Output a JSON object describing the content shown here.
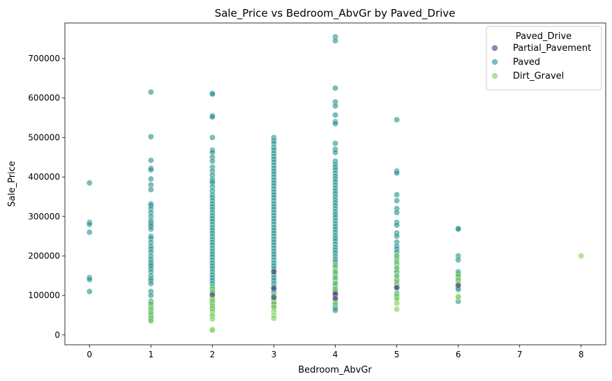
{
  "chart_data": {
    "type": "scatter",
    "title": "Sale_Price vs Bedroom_AbvGr by Paved_Drive",
    "xlabel": "Bedroom_AbvGr",
    "ylabel": "Sale_Price",
    "xlim": [
      -0.4,
      8.4
    ],
    "ylim": [
      -25000,
      790000
    ],
    "xticks": [
      "0",
      "1",
      "2",
      "3",
      "4",
      "5",
      "6",
      "7",
      "8"
    ],
    "yticks": [
      "0",
      "100000",
      "200000",
      "300000",
      "400000",
      "500000",
      "600000",
      "700000"
    ],
    "grid": false,
    "legend": {
      "title": "Paved_Drive",
      "position": "top-right"
    },
    "series": [
      {
        "name": "Partial_Pavement",
        "color": "#46337e",
        "points": [
          [
            3,
            160000
          ],
          [
            3,
            118000
          ],
          [
            3,
            95000
          ],
          [
            4,
            100000
          ],
          [
            4,
            105000
          ],
          [
            4,
            92000
          ],
          [
            2,
            102000
          ],
          [
            5,
            120000
          ],
          [
            6,
            125000
          ]
        ]
      },
      {
        "name": "Paved",
        "color": "#21918c",
        "points": [
          [
            0,
            385000
          ],
          [
            0,
            285000
          ],
          [
            0,
            280000
          ],
          [
            0,
            260000
          ],
          [
            0,
            145000
          ],
          [
            0,
            140000
          ],
          [
            0,
            110000
          ],
          [
            1,
            615000
          ],
          [
            1,
            502000
          ],
          [
            1,
            442000
          ],
          [
            1,
            422000
          ],
          [
            1,
            418000
          ],
          [
            1,
            395000
          ],
          [
            1,
            380000
          ],
          [
            1,
            368000
          ],
          [
            1,
            332000
          ],
          [
            1,
            328000
          ],
          [
            1,
            320000
          ],
          [
            1,
            310000
          ],
          [
            1,
            300000
          ],
          [
            1,
            290000
          ],
          [
            1,
            285000
          ],
          [
            1,
            280000
          ],
          [
            1,
            275000
          ],
          [
            1,
            268000
          ],
          [
            1,
            250000
          ],
          [
            1,
            245000
          ],
          [
            1,
            235000
          ],
          [
            1,
            225000
          ],
          [
            1,
            218000
          ],
          [
            1,
            210000
          ],
          [
            1,
            200000
          ],
          [
            1,
            192000
          ],
          [
            1,
            185000
          ],
          [
            1,
            180000
          ],
          [
            1,
            175000
          ],
          [
            1,
            168000
          ],
          [
            1,
            160000
          ],
          [
            1,
            150000
          ],
          [
            1,
            143000
          ],
          [
            1,
            138000
          ],
          [
            1,
            130000
          ],
          [
            1,
            110000
          ],
          [
            1,
            100000
          ],
          [
            1,
            85000
          ],
          [
            1,
            78000
          ],
          [
            1,
            70000
          ],
          [
            1,
            60000
          ],
          [
            1,
            50000
          ],
          [
            1,
            45000
          ],
          [
            1,
            38000
          ],
          [
            2,
            612000
          ],
          [
            2,
            610000
          ],
          [
            2,
            555000
          ],
          [
            2,
            552000
          ],
          [
            2,
            500000
          ],
          [
            2,
            468000
          ],
          [
            2,
            462000
          ],
          [
            2,
            450000
          ],
          [
            2,
            440000
          ],
          [
            2,
            425000
          ],
          [
            2,
            415000
          ],
          [
            2,
            405000
          ],
          [
            2,
            395000
          ],
          [
            2,
            390000
          ],
          [
            2,
            385000
          ],
          [
            2,
            375000
          ],
          [
            2,
            365000
          ],
          [
            2,
            355000
          ],
          [
            2,
            348000
          ],
          [
            2,
            340000
          ],
          [
            2,
            332000
          ],
          [
            2,
            325000
          ],
          [
            2,
            318000
          ],
          [
            2,
            310000
          ],
          [
            2,
            302000
          ],
          [
            2,
            295000
          ],
          [
            2,
            288000
          ],
          [
            2,
            280000
          ],
          [
            2,
            272000
          ],
          [
            2,
            265000
          ],
          [
            2,
            258000
          ],
          [
            2,
            250000
          ],
          [
            2,
            242000
          ],
          [
            2,
            235000
          ],
          [
            2,
            228000
          ],
          [
            2,
            220000
          ],
          [
            2,
            212000
          ],
          [
            2,
            205000
          ],
          [
            2,
            198000
          ],
          [
            2,
            190000
          ],
          [
            2,
            182000
          ],
          [
            2,
            175000
          ],
          [
            2,
            168000
          ],
          [
            2,
            160000
          ],
          [
            2,
            152000
          ],
          [
            2,
            145000
          ],
          [
            2,
            138000
          ],
          [
            2,
            130000
          ],
          [
            2,
            122000
          ],
          [
            2,
            115000
          ],
          [
            2,
            108000
          ],
          [
            2,
            95000
          ],
          [
            2,
            88000
          ],
          [
            2,
            80000
          ],
          [
            2,
            72000
          ],
          [
            2,
            65000
          ],
          [
            3,
            500000
          ],
          [
            3,
            492000
          ],
          [
            3,
            485000
          ],
          [
            3,
            475000
          ],
          [
            3,
            468000
          ],
          [
            3,
            460000
          ],
          [
            3,
            452000
          ],
          [
            3,
            445000
          ],
          [
            3,
            438000
          ],
          [
            3,
            430000
          ],
          [
            3,
            422000
          ],
          [
            3,
            415000
          ],
          [
            3,
            408000
          ],
          [
            3,
            400000
          ],
          [
            3,
            392000
          ],
          [
            3,
            385000
          ],
          [
            3,
            378000
          ],
          [
            3,
            370000
          ],
          [
            3,
            362000
          ],
          [
            3,
            355000
          ],
          [
            3,
            348000
          ],
          [
            3,
            340000
          ],
          [
            3,
            332000
          ],
          [
            3,
            325000
          ],
          [
            3,
            318000
          ],
          [
            3,
            310000
          ],
          [
            3,
            302000
          ],
          [
            3,
            295000
          ],
          [
            3,
            288000
          ],
          [
            3,
            280000
          ],
          [
            3,
            272000
          ],
          [
            3,
            265000
          ],
          [
            3,
            258000
          ],
          [
            3,
            250000
          ],
          [
            3,
            242000
          ],
          [
            3,
            235000
          ],
          [
            3,
            228000
          ],
          [
            3,
            220000
          ],
          [
            3,
            212000
          ],
          [
            3,
            205000
          ],
          [
            3,
            198000
          ],
          [
            3,
            190000
          ],
          [
            3,
            182000
          ],
          [
            3,
            175000
          ],
          [
            3,
            168000
          ],
          [
            3,
            160000
          ],
          [
            3,
            152000
          ],
          [
            3,
            145000
          ],
          [
            3,
            138000
          ],
          [
            3,
            130000
          ],
          [
            3,
            122000
          ],
          [
            3,
            115000
          ],
          [
            3,
            108000
          ],
          [
            3,
            100000
          ],
          [
            3,
            92000
          ],
          [
            3,
            85000
          ],
          [
            3,
            78000
          ],
          [
            3,
            70000
          ],
          [
            4,
            755000
          ],
          [
            4,
            745000
          ],
          [
            4,
            625000
          ],
          [
            4,
            590000
          ],
          [
            4,
            580000
          ],
          [
            4,
            557000
          ],
          [
            4,
            540000
          ],
          [
            4,
            535000
          ],
          [
            4,
            485000
          ],
          [
            4,
            470000
          ],
          [
            4,
            462000
          ],
          [
            4,
            440000
          ],
          [
            4,
            432000
          ],
          [
            4,
            425000
          ],
          [
            4,
            418000
          ],
          [
            4,
            410000
          ],
          [
            4,
            402000
          ],
          [
            4,
            395000
          ],
          [
            4,
            388000
          ],
          [
            4,
            380000
          ],
          [
            4,
            372000
          ],
          [
            4,
            365000
          ],
          [
            4,
            358000
          ],
          [
            4,
            350000
          ],
          [
            4,
            342000
          ],
          [
            4,
            335000
          ],
          [
            4,
            328000
          ],
          [
            4,
            320000
          ],
          [
            4,
            312000
          ],
          [
            4,
            305000
          ],
          [
            4,
            298000
          ],
          [
            4,
            290000
          ],
          [
            4,
            282000
          ],
          [
            4,
            275000
          ],
          [
            4,
            268000
          ],
          [
            4,
            260000
          ],
          [
            4,
            252000
          ],
          [
            4,
            245000
          ],
          [
            4,
            238000
          ],
          [
            4,
            230000
          ],
          [
            4,
            222000
          ],
          [
            4,
            215000
          ],
          [
            4,
            208000
          ],
          [
            4,
            200000
          ],
          [
            4,
            192000
          ],
          [
            4,
            185000
          ],
          [
            4,
            178000
          ],
          [
            4,
            170000
          ],
          [
            4,
            162000
          ],
          [
            4,
            155000
          ],
          [
            4,
            148000
          ],
          [
            4,
            140000
          ],
          [
            4,
            132000
          ],
          [
            4,
            125000
          ],
          [
            4,
            118000
          ],
          [
            4,
            110000
          ],
          [
            4,
            85000
          ],
          [
            4,
            75000
          ],
          [
            4,
            68000
          ],
          [
            4,
            62000
          ],
          [
            5,
            545000
          ],
          [
            5,
            415000
          ],
          [
            5,
            410000
          ],
          [
            5,
            355000
          ],
          [
            5,
            340000
          ],
          [
            5,
            320000
          ],
          [
            5,
            310000
          ],
          [
            5,
            285000
          ],
          [
            5,
            278000
          ],
          [
            5,
            258000
          ],
          [
            5,
            250000
          ],
          [
            5,
            235000
          ],
          [
            5,
            225000
          ],
          [
            5,
            218000
          ],
          [
            5,
            210000
          ],
          [
            5,
            200000
          ],
          [
            5,
            192000
          ],
          [
            5,
            180000
          ],
          [
            5,
            168000
          ],
          [
            5,
            160000
          ],
          [
            5,
            148000
          ],
          [
            5,
            140000
          ],
          [
            5,
            128000
          ],
          [
            5,
            118000
          ],
          [
            5,
            105000
          ],
          [
            5,
            95000
          ],
          [
            6,
            270000
          ],
          [
            6,
            268000
          ],
          [
            6,
            200000
          ],
          [
            6,
            190000
          ],
          [
            6,
            160000
          ],
          [
            6,
            155000
          ],
          [
            6,
            148000
          ],
          [
            6,
            140000
          ],
          [
            6,
            130000
          ],
          [
            6,
            120000
          ],
          [
            6,
            115000
          ],
          [
            6,
            85000
          ]
        ]
      },
      {
        "name": "Dirt_Gravel",
        "color": "#7ad151",
        "points": [
          [
            1,
            80000
          ],
          [
            1,
            65000
          ],
          [
            1,
            55000
          ],
          [
            1,
            42000
          ],
          [
            1,
            35000
          ],
          [
            2,
            118000
          ],
          [
            2,
            110000
          ],
          [
            2,
            100000
          ],
          [
            2,
            92000
          ],
          [
            2,
            85000
          ],
          [
            2,
            75000
          ],
          [
            2,
            68000
          ],
          [
            2,
            60000
          ],
          [
            2,
            52000
          ],
          [
            2,
            48000
          ],
          [
            2,
            40000
          ],
          [
            2,
            14000
          ],
          [
            2,
            12000
          ],
          [
            3,
            100000
          ],
          [
            3,
            90000
          ],
          [
            3,
            80000
          ],
          [
            3,
            70000
          ],
          [
            3,
            60000
          ],
          [
            3,
            50000
          ],
          [
            3,
            42000
          ],
          [
            4,
            175000
          ],
          [
            4,
            160000
          ],
          [
            4,
            145000
          ],
          [
            4,
            130000
          ],
          [
            4,
            115000
          ],
          [
            4,
            100000
          ],
          [
            4,
            90000
          ],
          [
            4,
            80000
          ],
          [
            5,
            200000
          ],
          [
            5,
            185000
          ],
          [
            5,
            170000
          ],
          [
            5,
            150000
          ],
          [
            5,
            135000
          ],
          [
            5,
            120000
          ],
          [
            5,
            100000
          ],
          [
            5,
            90000
          ],
          [
            5,
            80000
          ],
          [
            5,
            65000
          ],
          [
            6,
            150000
          ],
          [
            6,
            140000
          ],
          [
            6,
            130000
          ],
          [
            6,
            98000
          ],
          [
            6,
            95000
          ],
          [
            8,
            200000
          ]
        ]
      }
    ]
  }
}
